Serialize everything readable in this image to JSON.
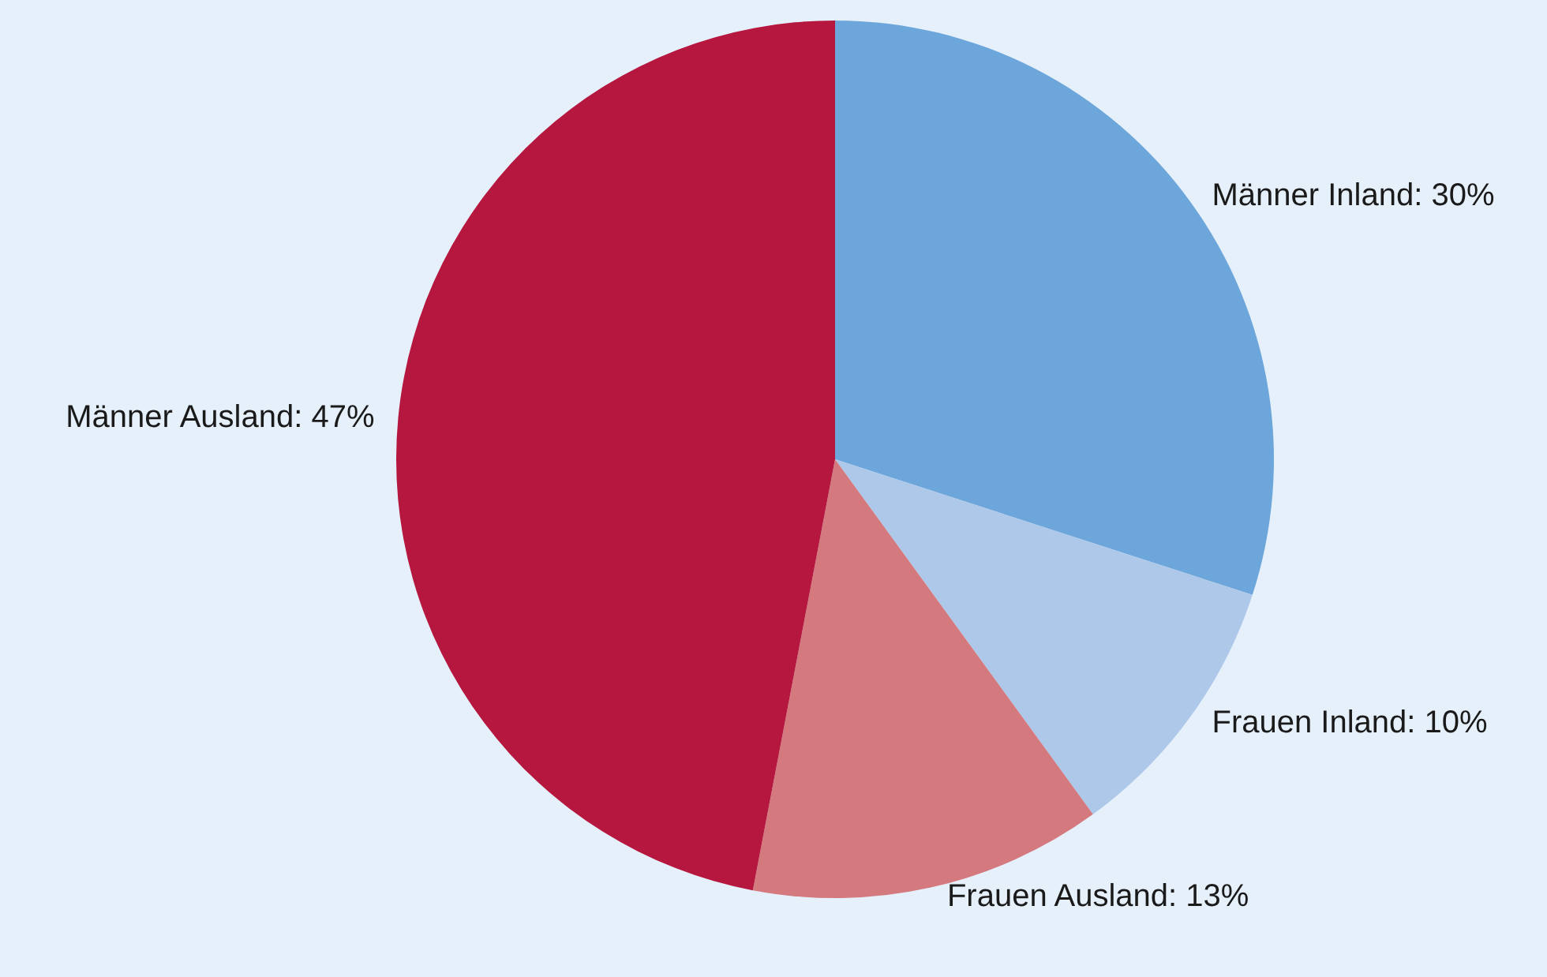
{
  "chart_data": {
    "type": "pie",
    "categories": [
      "Männer Inland",
      "Frauen Inland",
      "Frauen Ausland",
      "Männer Ausland"
    ],
    "values": [
      30,
      10,
      13,
      47
    ],
    "colors": [
      "#6ca6da",
      "#aec8ea",
      "#d47a7e",
      "#b5173e"
    ],
    "value_labels": [
      "30%",
      "10%",
      "13%",
      "47%"
    ],
    "legend": false
  }
}
